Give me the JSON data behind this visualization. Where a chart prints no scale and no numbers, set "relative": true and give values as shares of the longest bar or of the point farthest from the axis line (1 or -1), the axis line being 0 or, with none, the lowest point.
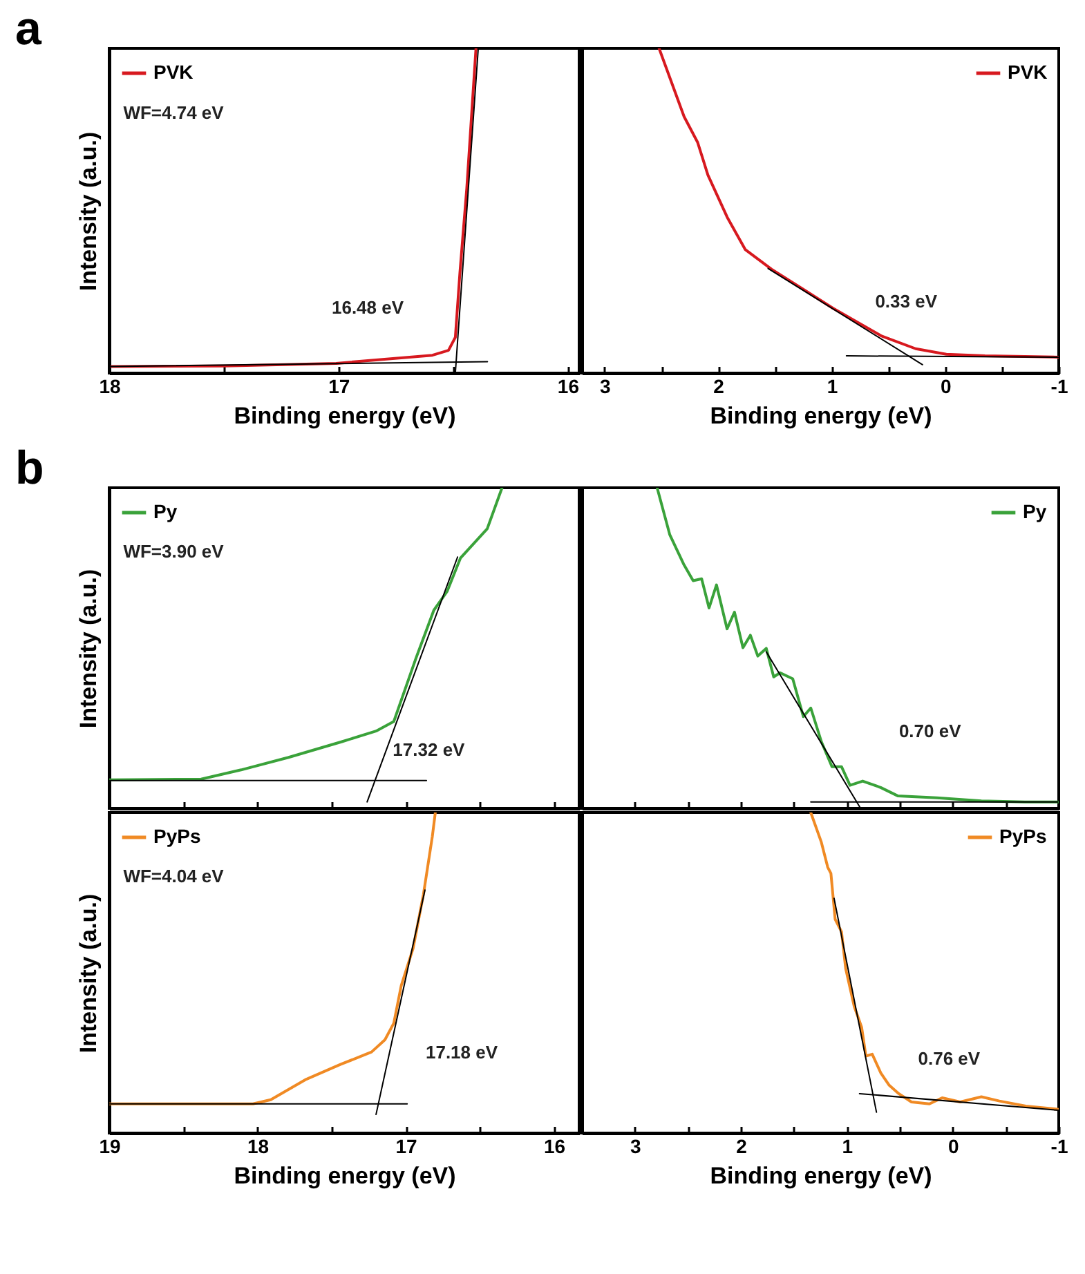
{
  "chart_data": [
    {
      "type": "line",
      "title": "a",
      "xlabel": "Binding energy (eV)",
      "ylabel": "Intensity (a.u.)",
      "relative": true,
      "xlim": [
        18,
        15.95
      ],
      "xticks": [
        18,
        {
          "value": 17.5,
          "label": null
        },
        17,
        {
          "value": 16.5,
          "label": null
        },
        16
      ],
      "tick_labels": "x",
      "legend": "top left",
      "annotations": [
        "WF=4.74 eV",
        "16.48 eV"
      ],
      "series": [
        {
          "name": "PVK",
          "color": "#d7191f",
          "x": [
            17.99,
            17.5,
            17.01,
            16.59,
            16.52,
            16.49,
            16.47,
            16.44,
            16.4
          ],
          "values": [
            0.02,
            0.022,
            0.03,
            0.055,
            0.07,
            0.11,
            0.31,
            0.57,
            1.0
          ]
        },
        {
          "type": "line",
          "color": "#000000",
          "x": [
            18,
            16.35
          ],
          "values": [
            0.02,
            0.035
          ]
        },
        {
          "type": "line",
          "color": "#000000",
          "x": [
            16.49,
            16.39
          ],
          "values": [
            0,
            1.0
          ]
        }
      ]
    },
    {
      "type": "line",
      "xlabel": "Binding energy (eV)",
      "relative": true,
      "xlim": [
        3.2,
        -1
      ],
      "xticks": [
        3,
        {
          "value": 2.5,
          "label": null
        },
        2,
        {
          "value": 1.5,
          "label": null
        },
        1,
        {
          "value": 0.5,
          "label": null
        },
        0,
        {
          "value": -0.5,
          "label": null
        },
        -1
      ],
      "tick_labels": "x",
      "legend": "top right",
      "annotations": [
        "0.33 eV"
      ],
      "series": [
        {
          "name": "PVK",
          "color": "#d7191f",
          "x": [
            2.52,
            2.3,
            2.18,
            2.09,
            1.92,
            1.76,
            1.53,
            1.26,
            0.99,
            0.56,
            0.26,
            -0.01,
            -0.35,
            -1.0
          ],
          "values": [
            1.0,
            0.79,
            0.71,
            0.61,
            0.48,
            0.38,
            0.32,
            0.26,
            0.2,
            0.114,
            0.075,
            0.058,
            0.053,
            0.049
          ]
        },
        {
          "type": "line",
          "color": "#000000",
          "x": [
            1.56,
            0.2
          ],
          "values": [
            0.322,
            0.026
          ]
        },
        {
          "type": "line",
          "color": "#000000",
          "x": [
            0.87,
            -1
          ],
          "values": [
            0.053,
            0.049
          ]
        }
      ]
    },
    {
      "type": "line",
      "title": "b",
      "ylabel": "Intensity (a.u.)",
      "relative": true,
      "xlim": [
        19,
        15.83
      ],
      "xticks": [
        {
          "value": 18.5,
          "label": null
        },
        {
          "value": 18,
          "label": null
        },
        {
          "value": 17.5,
          "label": null
        },
        {
          "value": 17,
          "label": null
        },
        {
          "value": 16.5,
          "label": null
        },
        {
          "value": 16,
          "label": null
        }
      ],
      "tick_labels": false,
      "legend": "top left",
      "annotations": [
        "WF=3.90 eV",
        "17.32 eV"
      ],
      "series": [
        {
          "name": "Py",
          "color": "#3aa23a",
          "x": [
            19.0,
            18.38,
            18.11,
            17.79,
            17.43,
            17.2,
            17.08,
            16.93,
            16.81,
            16.72,
            16.63,
            16.45,
            16.35
          ],
          "values": [
            0.089,
            0.091,
            0.12,
            0.159,
            0.208,
            0.241,
            0.271,
            0.469,
            0.618,
            0.677,
            0.781,
            0.872,
            1.0
          ]
        },
        {
          "type": "line",
          "color": "#000000",
          "x": [
            19.0,
            16.86
          ],
          "values": [
            0.087,
            0.087
          ]
        },
        {
          "type": "line",
          "color": "#000000",
          "x": [
            17.26,
            16.65
          ],
          "values": [
            0.02,
            0.784
          ]
        }
      ]
    },
    {
      "type": "line",
      "relative": true,
      "xlim": [
        3.5,
        -1
      ],
      "xticks": [
        {
          "value": 3,
          "label": null
        },
        {
          "value": 2.5,
          "label": null
        },
        {
          "value": 2,
          "label": null
        },
        {
          "value": 1.5,
          "label": null
        },
        {
          "value": 1,
          "label": null
        },
        {
          "value": 0.5,
          "label": null
        },
        {
          "value": 0,
          "label": null
        },
        {
          "value": -0.5,
          "label": null
        }
      ],
      "tick_labels": false,
      "legend": "top right",
      "annotations": [
        "0.70 eV"
      ],
      "series": [
        {
          "name": "Py",
          "color": "#3aa23a",
          "x": [
            2.79,
            2.67,
            2.54,
            2.45,
            2.37,
            2.3,
            2.23,
            2.13,
            2.06,
            1.98,
            1.91,
            1.84,
            1.76,
            1.69,
            1.63,
            1.51,
            1.41,
            1.34,
            1.24,
            1.14,
            1.05,
            0.97,
            0.85,
            0.68,
            0.52,
            0.15,
            -0.27,
            -0.68,
            -0.99
          ],
          "values": [
            1.0,
            0.853,
            0.762,
            0.71,
            0.716,
            0.625,
            0.697,
            0.56,
            0.612,
            0.501,
            0.54,
            0.475,
            0.499,
            0.41,
            0.423,
            0.404,
            0.286,
            0.313,
            0.208,
            0.13,
            0.13,
            0.072,
            0.085,
            0.065,
            0.039,
            0.033,
            0.023,
            0.02,
            0.02
          ]
        },
        {
          "type": "line",
          "color": "#000000",
          "x": [
            1.76,
            0.87
          ],
          "values": [
            0.488,
            0
          ]
        },
        {
          "type": "line",
          "color": "#000000",
          "x": [
            1.34,
            -0.99
          ],
          "values": [
            0.02,
            0.02
          ]
        }
      ]
    },
    {
      "type": "line",
      "xlabel": "Binding energy (eV)",
      "ylabel": "Intensity (a.u.)",
      "relative": true,
      "xlim": [
        19,
        15.83
      ],
      "xticks": [
        19,
        {
          "value": 18.5,
          "label": null
        },
        18,
        {
          "value": 17.5,
          "label": null
        },
        17,
        {
          "value": 16.5,
          "label": null
        },
        16
      ],
      "tick_labels": "x",
      "legend": "top left",
      "annotations": [
        "WF=4.04 eV",
        "17.18 eV"
      ],
      "series": [
        {
          "name": "PyPs",
          "color": "#f08a24",
          "x": [
            19,
            18.03,
            17.91,
            17.67,
            17.44,
            17.23,
            17.14,
            17.08,
            17.03,
            16.95,
            16.88,
            16.82,
            16.8
          ],
          "values": [
            0.091,
            0.091,
            0.104,
            0.168,
            0.214,
            0.253,
            0.291,
            0.343,
            0.46,
            0.576,
            0.745,
            0.926,
            1.0
          ]
        },
        {
          "type": "line",
          "color": "#000000",
          "x": [
            19,
            16.99
          ],
          "values": [
            0.091,
            0.091
          ]
        },
        {
          "type": "line",
          "color": "#000000",
          "x": [
            17.2,
            16.87
          ],
          "values": [
            0.058,
            0.758
          ]
        }
      ]
    },
    {
      "type": "line",
      "xlabel": "Binding energy (eV)",
      "relative": true,
      "xlim": [
        3.5,
        -1
      ],
      "xticks": [
        3,
        {
          "value": 2.5,
          "label": null
        },
        2,
        {
          "value": 1.5,
          "label": null
        },
        1,
        {
          "value": 0.5,
          "label": null
        },
        0,
        {
          "value": -0.5,
          "label": null
        },
        -1
      ],
      "tick_labels": "x",
      "legend": "top right",
      "annotations": [
        "0.76 eV"
      ],
      "series": [
        {
          "name": "PyPs",
          "color": "#f08a24",
          "x": [
            1.34,
            1.24,
            1.18,
            1.15,
            1.11,
            1.05,
            1.01,
            0.93,
            0.86,
            0.82,
            0.76,
            0.68,
            0.6,
            0.51,
            0.39,
            0.22,
            0.1,
            -0.07,
            -0.27,
            -0.44,
            -0.69,
            -1.0
          ],
          "values": [
            1.0,
            0.907,
            0.829,
            0.81,
            0.667,
            0.628,
            0.512,
            0.395,
            0.33,
            0.24,
            0.246,
            0.188,
            0.149,
            0.123,
            0.097,
            0.091,
            0.11,
            0.097,
            0.113,
            0.1,
            0.084,
            0.074
          ]
        },
        {
          "type": "line",
          "color": "#000000",
          "x": [
            1.12,
            0.72
          ],
          "values": [
            0.732,
            0.065
          ]
        },
        {
          "type": "line",
          "color": "#000000",
          "x": [
            0.88,
            -1
          ],
          "values": [
            0.123,
            0.071
          ]
        }
      ]
    }
  ]
}
